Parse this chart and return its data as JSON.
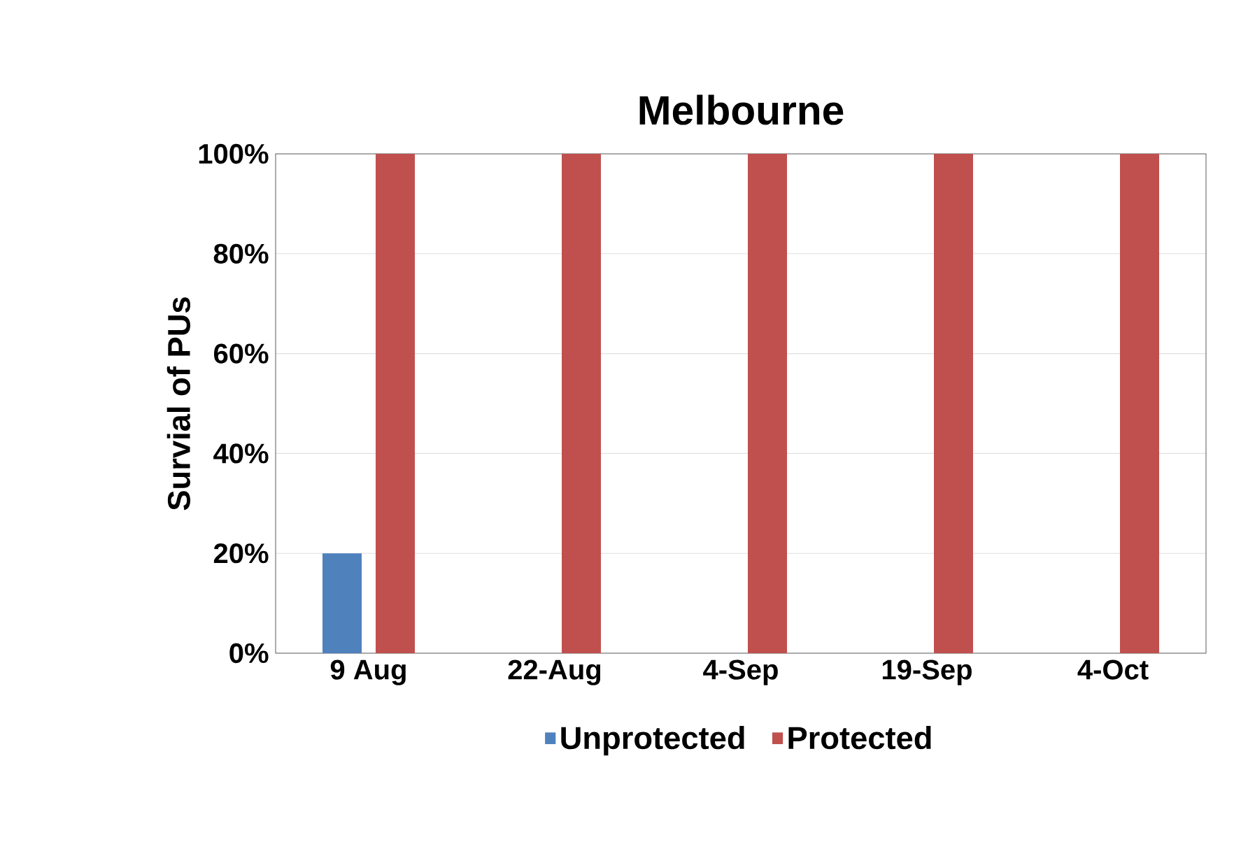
{
  "chart_data": {
    "type": "bar",
    "title": "Melbourne",
    "ylabel": "Survial of PUs",
    "categories": [
      "9 Aug",
      "22-Aug",
      "4-Sep",
      "19-Sep",
      "4-Oct"
    ],
    "series": [
      {
        "name": "Unprotected",
        "color": "#4f81bd",
        "values": [
          20,
          0,
          0,
          0,
          0
        ]
      },
      {
        "name": "Protected",
        "color": "#c0504d",
        "values": [
          100,
          100,
          100,
          100,
          100
        ]
      }
    ],
    "ylim": [
      0,
      100
    ],
    "yticks": [
      {
        "value": 0,
        "label": "0%"
      },
      {
        "value": 20,
        "label": "20%"
      },
      {
        "value": 40,
        "label": "40%"
      },
      {
        "value": 60,
        "label": "60%"
      },
      {
        "value": 80,
        "label": "80%"
      },
      {
        "value": 100,
        "label": "100%"
      }
    ],
    "grid": "y",
    "legend": "bottom"
  }
}
